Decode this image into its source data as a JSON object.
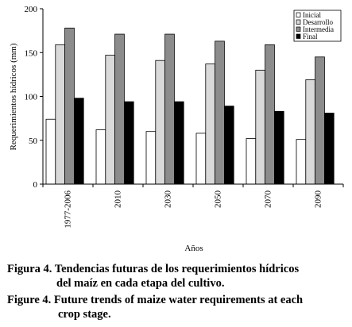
{
  "chart_data": {
    "type": "bar",
    "title": "",
    "xlabel": "Años",
    "ylabel": "Requerimientos hídricos (mm)",
    "ylim": [
      0,
      200
    ],
    "yticks": [
      0,
      50,
      100,
      150,
      200
    ],
    "categories": [
      "1977-2006",
      "2010",
      "2030",
      "2050",
      "2070",
      "2090"
    ],
    "legend_position": "top-right",
    "series": [
      {
        "name": "Inicial",
        "color": "#ffffff",
        "values": [
          74,
          62,
          60,
          58,
          52,
          51
        ]
      },
      {
        "name": "Desarrollo",
        "color": "#d9d9d9",
        "values": [
          159,
          147,
          141,
          137,
          130,
          119
        ]
      },
      {
        "name": "Intermedia",
        "color": "#8c8c8c",
        "values": [
          178,
          171,
          171,
          163,
          159,
          145
        ]
      },
      {
        "name": "Final",
        "color": "#000000",
        "values": [
          98,
          94,
          94,
          89,
          83,
          81
        ]
      }
    ]
  },
  "caption": {
    "es_line1": "Figura 4. Tendencias futuras de los requerimientos hídricos",
    "es_line2": "del maíz en cada etapa del cultivo.",
    "en_line1": "Figure 4. Future trends of maize water requirements at each",
    "en_line2": "crop stage."
  }
}
